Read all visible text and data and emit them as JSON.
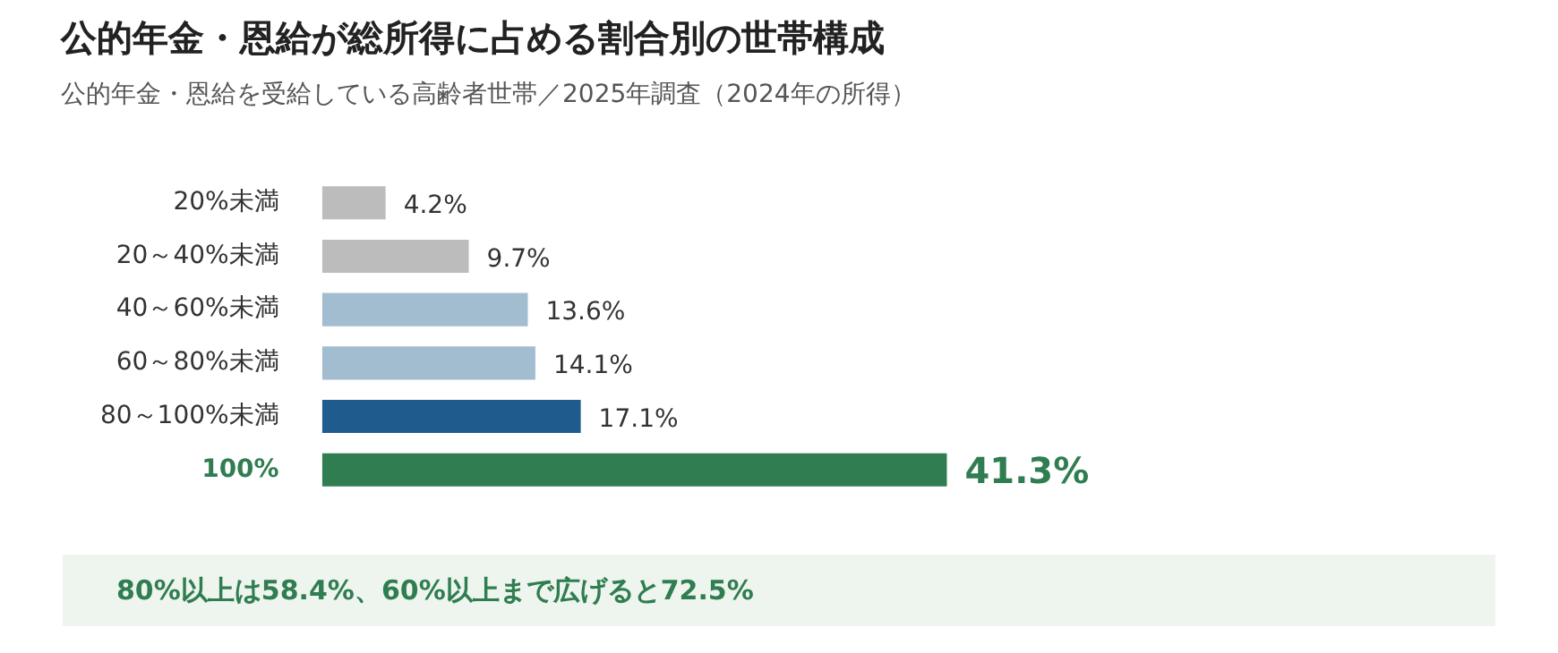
{
  "chart_data": {
    "type": "bar",
    "orientation": "horizontal",
    "title": "公的年金・恩給が総所得に占める割合別の世帯構成",
    "subtitle": "公的年金・恩給を受給している高齢者世帯／2025年調査（2024年の所得）",
    "categories": [
      "20%未満",
      "20～40%未満",
      "40～60%未満",
      "60～80%未満",
      "80～100%未満",
      "100%"
    ],
    "values": [
      4.2,
      9.7,
      13.6,
      14.1,
      17.1,
      41.3
    ],
    "colors": [
      "#bcbcbc",
      "#bcbcbc",
      "#a2bcd0",
      "#a2bcd0",
      "#1f5b8c",
      "#2f7d50"
    ],
    "value_labels": [
      "4.2%",
      "9.7%",
      "13.6%",
      "14.1%",
      "17.1%",
      "41.3%"
    ],
    "annotations": [
      "80%以上は58.4%、60%以上まで広げると72.5%"
    ],
    "tick_labels": "y"
  }
}
